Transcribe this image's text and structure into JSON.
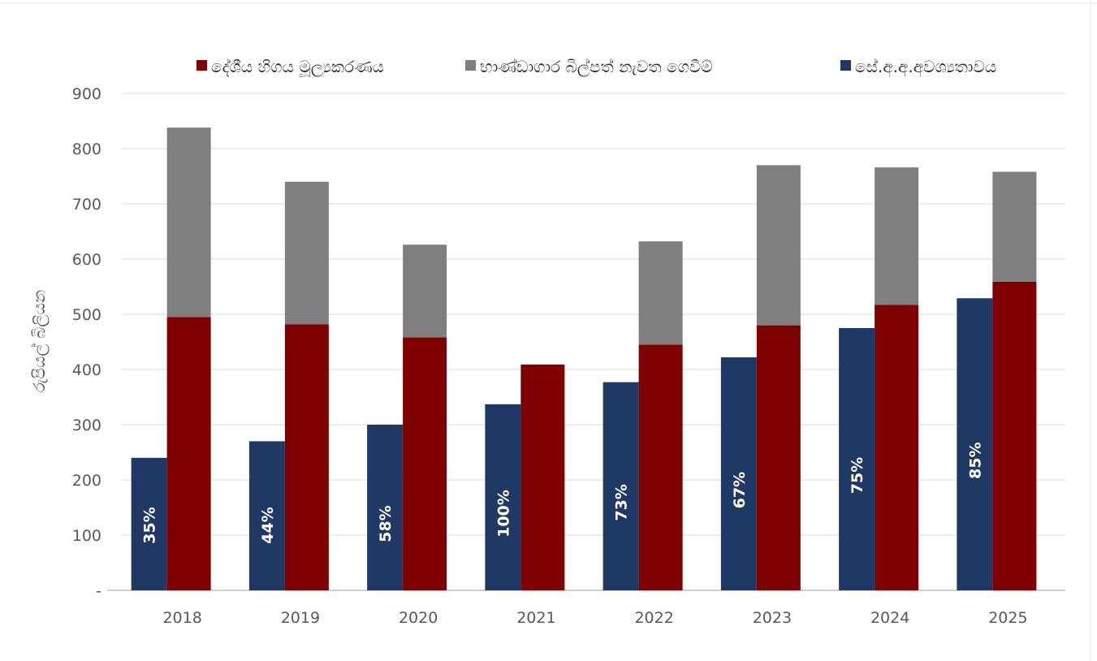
{
  "chart_data": {
    "type": "bar",
    "categories": [
      "2018",
      "2019",
      "2020",
      "2021",
      "2022",
      "2023",
      "2024",
      "2025"
    ],
    "series": [
      {
        "name": "සේ.අ.අ.අවශ්‍යතාවය",
        "color": "#203864",
        "values": [
          240,
          270,
          300,
          337,
          377,
          422,
          475,
          529
        ],
        "labels": [
          "35%",
          "44%",
          "58%",
          "100%",
          "73%",
          "67%",
          "75%",
          "85%"
        ]
      },
      {
        "name": "දේශීය හිගය මූල්‍යකරණය",
        "color": "#7f0000",
        "values": [
          495,
          482,
          458,
          409,
          445,
          480,
          517,
          559
        ],
        "stack_top": [
          {
            "name": "භාණ්ඩාගාර බිල්පත් නැවත ගෙවීම්",
            "color": "#7f7f7f",
            "values": [
              343,
              258,
              168,
              0,
              187,
              290,
              249,
              199
            ]
          }
        ]
      }
    ],
    "legend": [
      {
        "name": "දේශීය හිගය මූල්‍යකරණය",
        "color": "#7f0000"
      },
      {
        "name": "භාණ්ඩාගාර බිල්පත් නැවත ගෙවීම්",
        "color": "#7f7f7f"
      },
      {
        "name": "සේ.අ.අ.අවශ්‍යතාවය",
        "color": "#203864"
      }
    ],
    "legend_position": "top",
    "ylabel": "රුපියල් බිලියන",
    "ylim": [
      0,
      900
    ],
    "yticks": [
      "-",
      "100",
      "200",
      "300",
      "400",
      "500",
      "600",
      "700",
      "800",
      "900"
    ],
    "grid": true
  }
}
